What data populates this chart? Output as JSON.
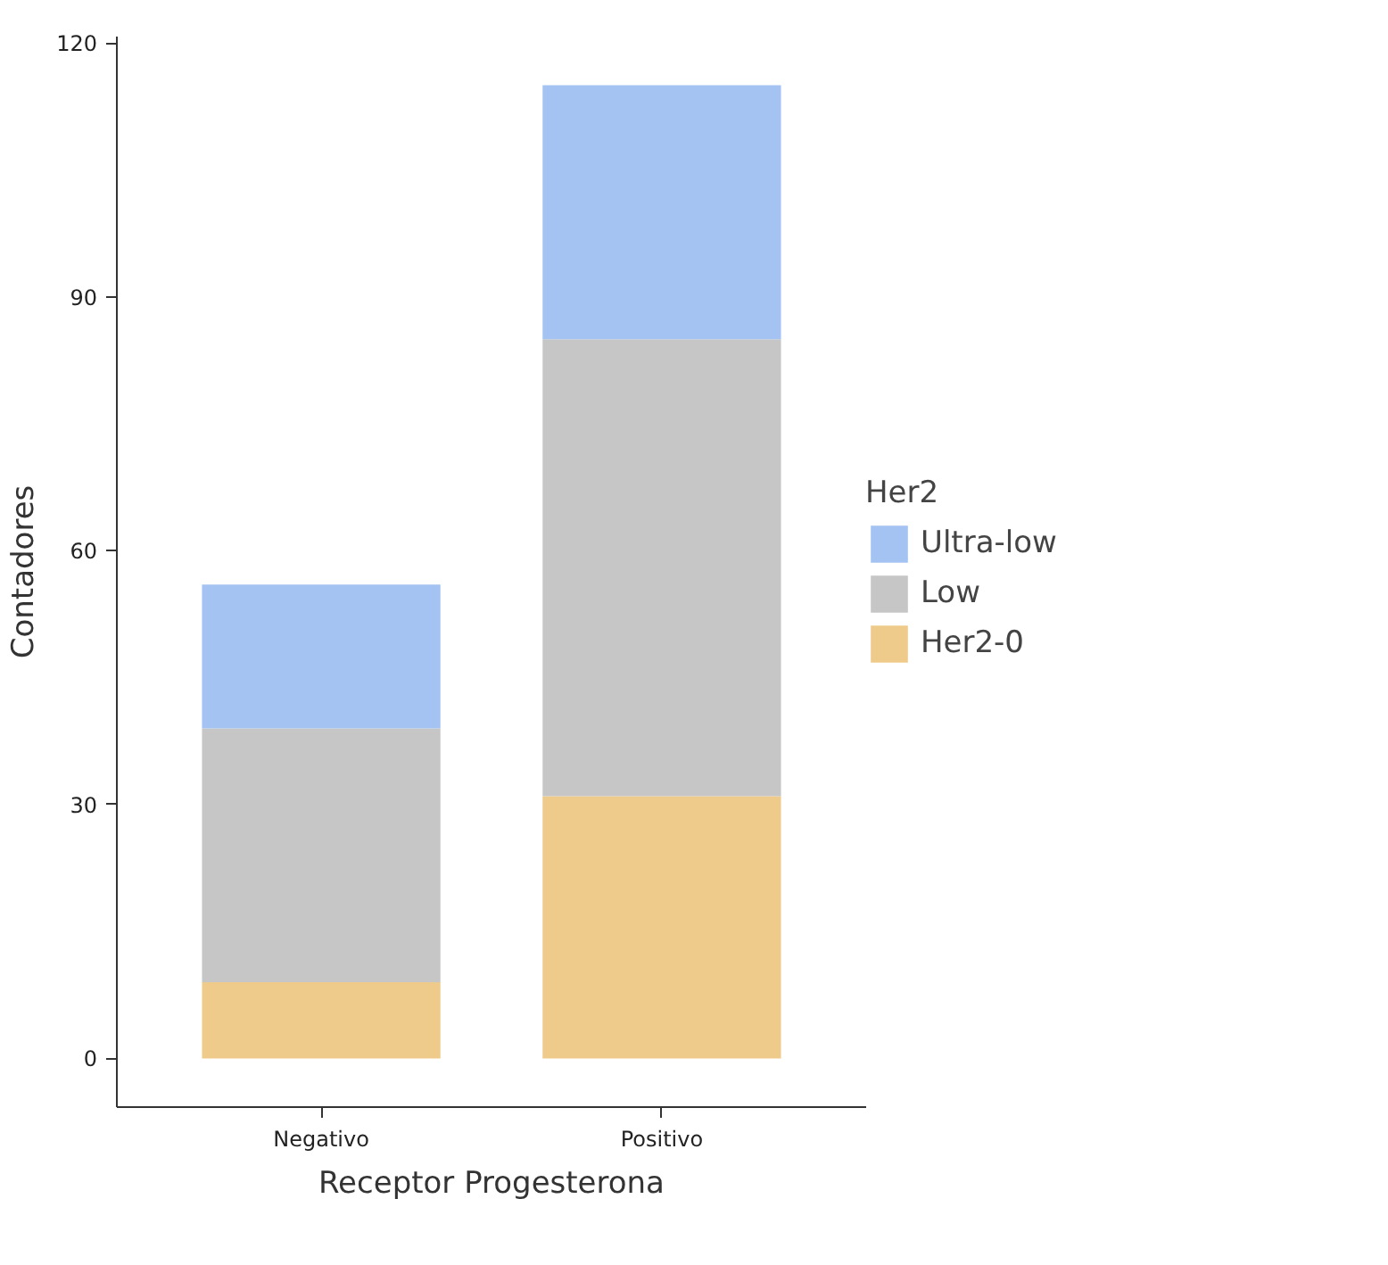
{
  "chart_data": {
    "type": "bar",
    "stacked": true,
    "xlabel": "Receptor Progesterona",
    "ylabel": "Contadores",
    "legend_title": "Her2",
    "legend": "right",
    "grid": false,
    "categories": [
      "Negativo",
      "Positivo"
    ],
    "series": [
      {
        "name": "Her2-0",
        "color": "#efcb8b",
        "values": [
          9,
          31
        ]
      },
      {
        "name": "Low",
        "color": "#c6c6c6",
        "values": [
          30,
          54
        ]
      },
      {
        "name": "Ultra-low",
        "color": "#a4c3f2",
        "values": [
          17,
          30
        ]
      }
    ],
    "ylim": [
      -5.75,
      120.75
    ],
    "yticks": [
      0,
      30,
      60,
      90,
      120
    ]
  }
}
